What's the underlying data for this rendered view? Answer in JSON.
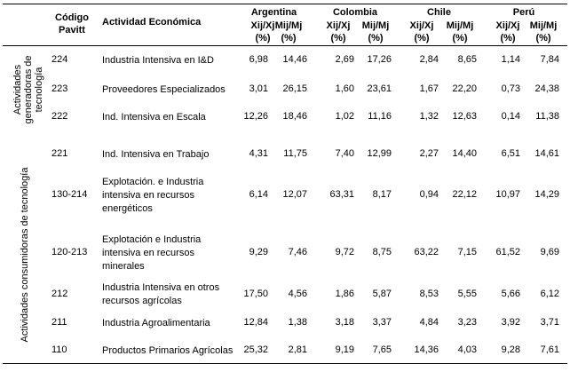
{
  "header": {
    "code_label": "Código Pavitt",
    "activity_label": "Actividad Económica",
    "countries": [
      "Argentina",
      "Colombia",
      "Chile",
      "Perú"
    ],
    "sub_xj": "Xij/Xj (%)",
    "sub_mj": "Mij/Mj (%)"
  },
  "groups": {
    "generadoras": "Actividades generadoras de tecnología",
    "consumidoras": "Actividades consumidoras de tecnología"
  },
  "rows": [
    {
      "code": "224",
      "activity": "Industria Intensiva en I&D",
      "values": [
        "6,98",
        "14,46",
        "2,69",
        "17,26",
        "2,84",
        "8,65",
        "1,14",
        "7,84"
      ]
    },
    {
      "code": "223",
      "activity": "Proveedores Especializados",
      "values": [
        "3,01",
        "26,15",
        "1,60",
        "23,61",
        "1,67",
        "22,20",
        "0,73",
        "24,38"
      ]
    },
    {
      "code": "222",
      "activity": "Ind. Intensiva en Escala",
      "values": [
        "12,26",
        "18,46",
        "1,02",
        "11,16",
        "1,32",
        "12,63",
        "0,14",
        "11,38"
      ]
    },
    {
      "code": "221",
      "activity": "Ind. Intensiva en Trabajo",
      "values": [
        "4,31",
        "11,75",
        "7,40",
        "12,99",
        "2,27",
        "14,40",
        "6,51",
        "14,61"
      ]
    },
    {
      "code": "130-214",
      "activity": "Explotación. e Industria intensiva en recursos energéticos",
      "values": [
        "6,14",
        "12,07",
        "63,31",
        "8,17",
        "0,94",
        "22,12",
        "10,97",
        "14,29"
      ]
    },
    {
      "code": "120-213",
      "activity": "Explotación e Industria intensiva en recursos minerales",
      "values": [
        "9,29",
        "7,46",
        "9,72",
        "8,75",
        "63,22",
        "7,15",
        "61,52",
        "9,69"
      ]
    },
    {
      "code": "212",
      "activity": "Industria Intensiva en otros recursos agrícolas",
      "values": [
        "17,50",
        "4,56",
        "1,86",
        "5,87",
        "8,53",
        "5,55",
        "5,66",
        "6,12"
      ]
    },
    {
      "code": "211",
      "activity": "Industria Agroalimentaria",
      "values": [
        "12,84",
        "1,38",
        "3,18",
        "3,37",
        "4,84",
        "3,23",
        "3,92",
        "3,71"
      ]
    },
    {
      "code": "110",
      "activity": "Productos Primarios Agrícolas",
      "values": [
        "25,32",
        "2,81",
        "9,19",
        "7,65",
        "14,36",
        "4,03",
        "9,28",
        "7,61"
      ]
    }
  ]
}
